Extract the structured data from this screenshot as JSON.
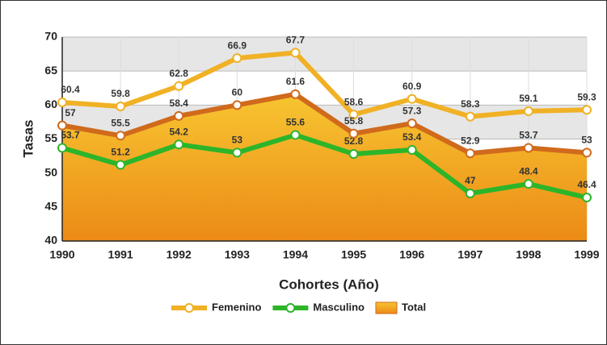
{
  "chart_data": {
    "type": "line",
    "x_label": "Cohortes (Año)",
    "y_label": "Tasas",
    "categories": [
      "1990",
      "1991",
      "1992",
      "1993",
      "1994",
      "1995",
      "1996",
      "1997",
      "1998",
      "1999"
    ],
    "series": [
      {
        "name": "Femenino",
        "color": "#f0b125",
        "values": [
          60.4,
          59.8,
          62.8,
          66.9,
          67.7,
          58.6,
          60.9,
          58.3,
          59.1,
          59.3
        ]
      },
      {
        "name": "Masculino",
        "color": "#2db52a",
        "values": [
          53.7,
          51.2,
          54.2,
          53,
          55.6,
          52.8,
          53.4,
          47,
          48.4,
          46.4
        ]
      },
      {
        "name": "Total",
        "color": "#d06a1c",
        "area": true,
        "values": [
          57,
          55.5,
          58.4,
          60,
          61.6,
          55.8,
          57.3,
          52.9,
          53.7,
          53
        ]
      }
    ],
    "ylim": [
      40,
      70
    ],
    "yticks": [
      40,
      45,
      50,
      55,
      60,
      65,
      70
    ],
    "grid": true
  }
}
